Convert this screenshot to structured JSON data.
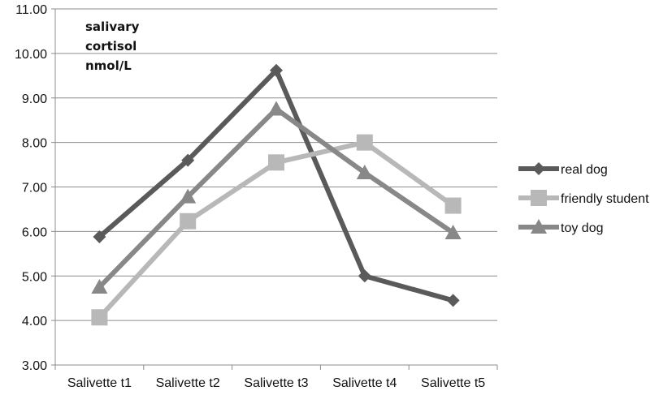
{
  "chart_data": {
    "type": "line",
    "title": "",
    "xlabel": "",
    "ylabel_lines": [
      "salivary",
      "cortisol",
      "nmol/L"
    ],
    "categories": [
      "Salivette t1",
      "Salivette t2",
      "Salivette t3",
      "Salivette t4",
      "Salivette t5"
    ],
    "ylim": [
      3.0,
      11.0
    ],
    "yticks": [
      "3.00",
      "4.00",
      "5.00",
      "6.00",
      "7.00",
      "8.00",
      "9.00",
      "10.00",
      "11.00"
    ],
    "grid": "horizontal",
    "legend_position": "right",
    "series": [
      {
        "name": "real dog",
        "values": [
          5.88,
          7.6,
          9.62,
          5.0,
          4.45
        ],
        "color": "#5a5a5a",
        "marker": "diamond"
      },
      {
        "name": "friendly student",
        "values": [
          4.07,
          6.23,
          7.55,
          8.0,
          6.58
        ],
        "color": "#b8b8b8",
        "marker": "square"
      },
      {
        "name": "toy dog",
        "values": [
          4.75,
          6.78,
          8.75,
          7.32,
          5.97
        ],
        "color": "#888888",
        "marker": "triangle"
      }
    ]
  }
}
